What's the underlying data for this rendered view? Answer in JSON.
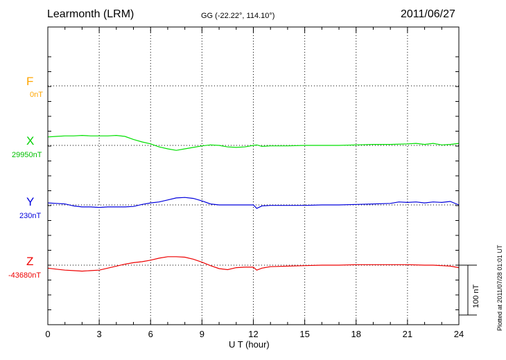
{
  "header": {
    "station": "Learmonth (LRM)",
    "coords": "GG (-22.22°, 114.10°)",
    "date": "2011/06/27"
  },
  "footnote": "Plotted at 2011/07/28 01:01 UT",
  "scale_bar": {
    "label": "100 nT",
    "length_nT": 100
  },
  "chart_data": {
    "type": "line",
    "title": "Learmonth (LRM)",
    "xlabel": "U T (hour)",
    "ylabel": "",
    "xlim": [
      0,
      24
    ],
    "x_ticks": [
      0,
      3,
      6,
      9,
      12,
      15,
      18,
      21,
      24
    ],
    "x_tick_labels": [
      "0",
      "3",
      "6",
      "9",
      "12",
      "15",
      "18",
      "21",
      "24"
    ],
    "grid": true,
    "channels": [
      {
        "name": "F",
        "value_label": "0nT",
        "color": "#ffa500",
        "x": [],
        "y": []
      },
      {
        "name": "X",
        "value_label": "29950nT",
        "color": "#00e000",
        "x": [
          0,
          0.5,
          1,
          1.5,
          2,
          2.5,
          3,
          3.5,
          4,
          4.5,
          5,
          5.5,
          6,
          6.5,
          7,
          7.5,
          8,
          8.5,
          9,
          9.5,
          10,
          10.5,
          11,
          11.5,
          12,
          12.2,
          12.5,
          13,
          14,
          15,
          16,
          17,
          18,
          19,
          20,
          21,
          21.5,
          22,
          22.5,
          23,
          23.5,
          24
        ],
        "y": [
          17,
          18,
          19,
          19,
          20,
          19,
          19,
          19,
          20,
          18,
          12,
          7,
          3,
          -3,
          -7,
          -10,
          -7,
          -4,
          -1,
          1,
          0,
          -3,
          -4,
          -3,
          0,
          1,
          -2,
          -1,
          -1,
          0,
          0,
          0,
          1,
          2,
          2,
          3,
          4,
          2,
          4,
          1,
          2,
          4
        ]
      },
      {
        "name": "Y",
        "value_label": "230nT",
        "color": "#0000dd",
        "x": [
          0,
          0.5,
          1,
          1.5,
          2,
          2.5,
          3,
          3.5,
          4,
          4.5,
          5,
          5.5,
          6,
          6.5,
          7,
          7.5,
          8,
          8.5,
          9,
          9.5,
          10,
          11,
          11.5,
          12,
          12.2,
          12.5,
          13,
          14,
          15,
          16,
          17,
          18,
          19,
          20,
          20.5,
          21,
          21.5,
          22,
          22.5,
          23,
          23.5,
          24
        ],
        "y": [
          4,
          3,
          2,
          -2,
          -4,
          -4,
          -5,
          -4,
          -4,
          -4,
          -3,
          1,
          4,
          6,
          10,
          14,
          15,
          13,
          8,
          2,
          0,
          0,
          0,
          0,
          -7,
          -2,
          -1,
          -1,
          -1,
          0,
          0,
          1,
          2,
          3,
          6,
          5,
          6,
          4,
          6,
          5,
          7,
          0
        ]
      },
      {
        "name": "Z",
        "value_label": "-43680nT",
        "color": "#ee0000",
        "x": [
          0,
          0.5,
          1,
          1.5,
          2,
          2.5,
          3,
          3.5,
          4,
          4.5,
          5,
          5.5,
          6,
          6.5,
          7,
          7.5,
          8,
          8.5,
          9,
          9.5,
          10,
          10.5,
          11,
          11.5,
          12,
          12.2,
          12.5,
          13,
          14,
          15,
          16,
          17,
          18,
          19,
          20,
          21,
          22,
          22.5,
          23,
          23.5,
          24
        ],
        "y": [
          -6,
          -8,
          -10,
          -11,
          -12,
          -11,
          -10,
          -6,
          -2,
          2,
          5,
          7,
          10,
          14,
          17,
          17,
          16,
          12,
          6,
          -1,
          -7,
          -9,
          -5,
          -4,
          -4,
          -10,
          -6,
          -3,
          -2,
          -1,
          0,
          0,
          1,
          1,
          1,
          1,
          0,
          0,
          -1,
          -2,
          -5
        ]
      }
    ]
  }
}
